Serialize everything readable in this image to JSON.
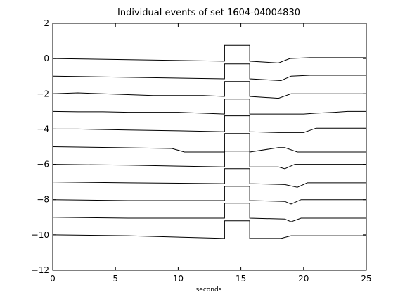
{
  "chart_data": {
    "type": "line",
    "title": "Individual events of set 1604-04004830",
    "xlabel": "seconds",
    "ylabel": "",
    "xlim": [
      0,
      25
    ],
    "ylim": [
      -12,
      2
    ],
    "xticks": [
      0,
      5,
      10,
      15,
      20,
      25
    ],
    "yticks": [
      -12,
      -10,
      -8,
      -6,
      -4,
      -2,
      0,
      2
    ],
    "grid": false,
    "line_color": "#000000",
    "series": [
      {
        "x": [
          0,
          13.7,
          13.7,
          15.7,
          15.7,
          18.0,
          18.9,
          20.5,
          25
        ],
        "y": [
          0.0,
          -0.15,
          0.75,
          0.75,
          -0.15,
          -0.25,
          0.0,
          0.05,
          0.05
        ]
      },
      {
        "x": [
          0,
          13.7,
          13.7,
          15.7,
          15.7,
          18.2,
          19.0,
          20.5,
          25
        ],
        "y": [
          -1.0,
          -1.15,
          -0.3,
          -0.3,
          -1.15,
          -1.25,
          -1.0,
          -0.95,
          -0.95
        ]
      },
      {
        "x": [
          0,
          2.0,
          4.0,
          6.0,
          8.0,
          10.0,
          12.0,
          13.7,
          13.7,
          15.7,
          15.7,
          18.0,
          19.0,
          25
        ],
        "y": [
          -2.0,
          -1.95,
          -2.0,
          -2.05,
          -2.1,
          -2.1,
          -2.1,
          -2.15,
          -1.3,
          -1.3,
          -2.15,
          -2.25,
          -2.0,
          -2.0
        ]
      },
      {
        "x": [
          0,
          2.0,
          4.0,
          6.0,
          8.0,
          10.0,
          13.7,
          13.7,
          15.7,
          15.7,
          18.0,
          20.0,
          21.0,
          22.5,
          23.5,
          25
        ],
        "y": [
          -3.0,
          -3.02,
          -3.02,
          -3.05,
          -3.05,
          -3.05,
          -3.15,
          -2.3,
          -2.3,
          -3.15,
          -3.15,
          -3.15,
          -3.1,
          -3.05,
          -3.0,
          -3.0
        ]
      },
      {
        "x": [
          0,
          2.0,
          6.0,
          10.0,
          13.7,
          13.7,
          15.7,
          15.7,
          18.0,
          20.0,
          21.0,
          25
        ],
        "y": [
          -4.0,
          -4.0,
          -4.05,
          -4.1,
          -4.15,
          -3.25,
          -3.25,
          -4.15,
          -4.2,
          -4.2,
          -3.95,
          -3.95
        ]
      },
      {
        "x": [
          0,
          5.0,
          9.5,
          10.5,
          13.7,
          13.7,
          15.7,
          15.7,
          18.0,
          18.5,
          19.5,
          25
        ],
        "y": [
          -5.0,
          -5.05,
          -5.1,
          -5.3,
          -5.3,
          -4.25,
          -4.25,
          -5.3,
          -5.05,
          -5.05,
          -5.3,
          -5.3
        ]
      },
      {
        "x": [
          0,
          6.0,
          10.0,
          13.7,
          13.7,
          15.7,
          15.7,
          18.0,
          18.5,
          19.3,
          20.5,
          25
        ],
        "y": [
          -6.0,
          -6.05,
          -6.1,
          -6.15,
          -5.25,
          -5.25,
          -6.15,
          -6.15,
          -6.25,
          -6.0,
          -6.0,
          -6.0
        ]
      },
      {
        "x": [
          0,
          6.0,
          13.7,
          13.7,
          15.7,
          15.7,
          18.5,
          19.5,
          20.3,
          25
        ],
        "y": [
          -7.0,
          -7.05,
          -7.1,
          -6.25,
          -6.25,
          -7.1,
          -7.15,
          -7.3,
          -7.05,
          -7.05
        ]
      },
      {
        "x": [
          0,
          6.0,
          13.7,
          13.7,
          15.7,
          15.7,
          18.5,
          19.0,
          19.8,
          25
        ],
        "y": [
          -8.0,
          -8.05,
          -8.05,
          -7.25,
          -7.25,
          -8.05,
          -8.1,
          -8.25,
          -8.0,
          -8.0
        ]
      },
      {
        "x": [
          0,
          6.0,
          13.7,
          13.7,
          15.7,
          15.7,
          18.5,
          19.0,
          19.8,
          25
        ],
        "y": [
          -9.0,
          -9.05,
          -9.05,
          -8.2,
          -8.2,
          -9.05,
          -9.1,
          -9.25,
          -9.05,
          -9.05
        ]
      },
      {
        "x": [
          0,
          6.0,
          13.7,
          13.7,
          15.7,
          15.7,
          18.2,
          19.0,
          20.5,
          25
        ],
        "y": [
          -10.0,
          -10.05,
          -10.2,
          -9.2,
          -9.2,
          -10.2,
          -10.2,
          -10.05,
          -10.05,
          -10.05
        ]
      }
    ]
  }
}
